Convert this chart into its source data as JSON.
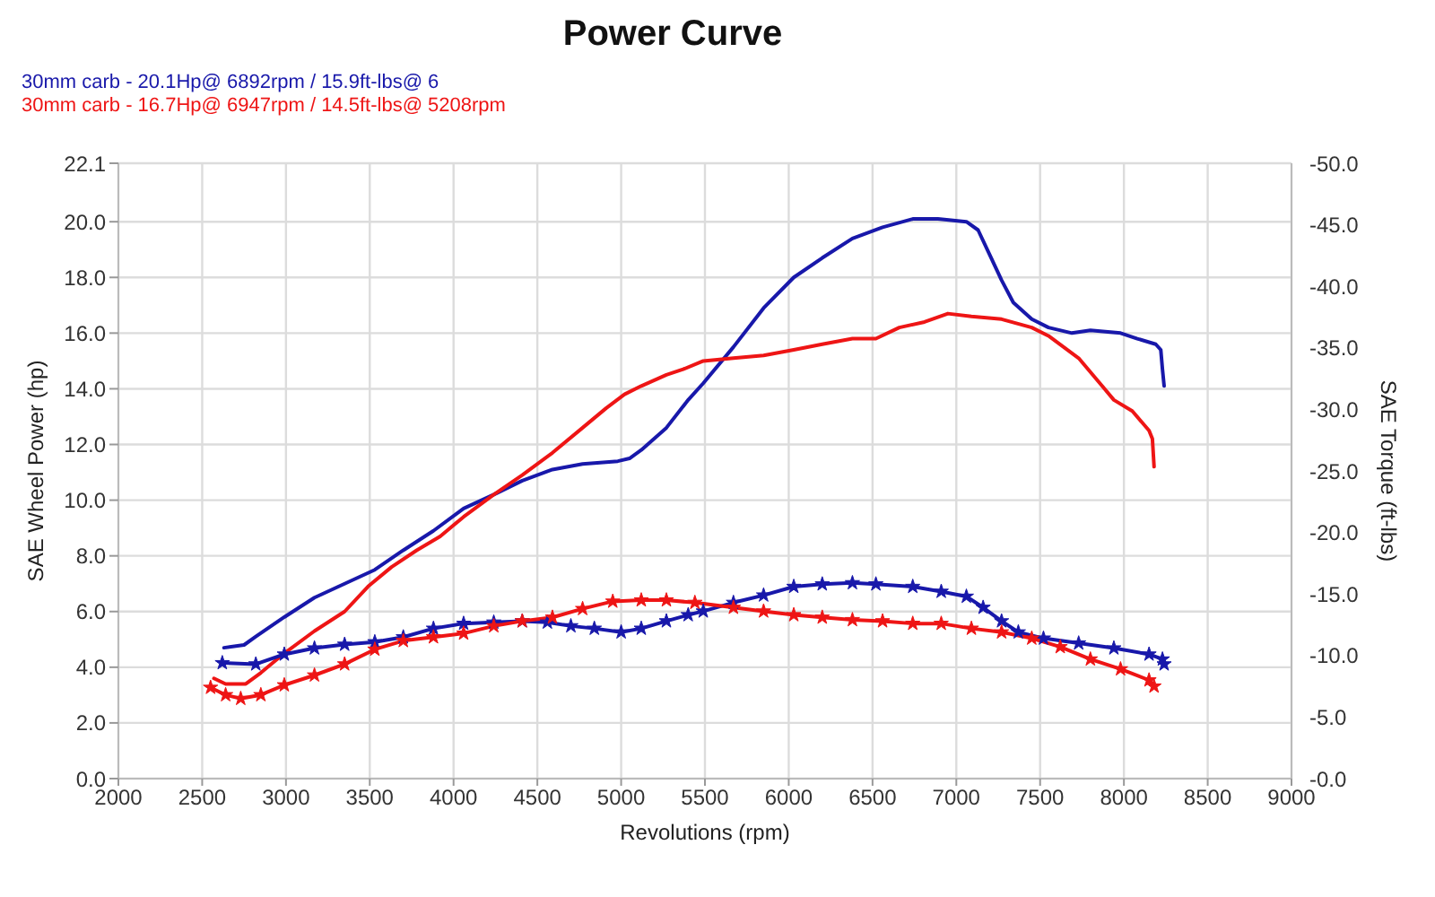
{
  "chart_data": {
    "type": "line",
    "title": "Power Curve",
    "xlabel": "Revolutions (rpm)",
    "ylabel": "SAE Wheel Power (hp)",
    "y2label": "SAE Torque (ft-lbs)",
    "xlim": [
      2000,
      9000
    ],
    "xticks": [
      2000,
      2500,
      3000,
      3500,
      4000,
      4500,
      5000,
      5500,
      6000,
      6500,
      7000,
      7500,
      8000,
      8500,
      9000
    ],
    "ylim": [
      0,
      22.1
    ],
    "yticks": [
      {
        "value": 0,
        "label": "0.0"
      },
      {
        "value": 2,
        "label": "2.0"
      },
      {
        "value": 4,
        "label": "4.0"
      },
      {
        "value": 6,
        "label": "6.0"
      },
      {
        "value": 8,
        "label": "8.0"
      },
      {
        "value": 10,
        "label": "10.0"
      },
      {
        "value": 12,
        "label": "12.0"
      },
      {
        "value": 14,
        "label": "14.0"
      },
      {
        "value": 16,
        "label": "16.0"
      },
      {
        "value": 18,
        "label": "18.0"
      },
      {
        "value": 20,
        "label": "20.0"
      },
      22.1
    ],
    "y2lim": [
      0,
      -50
    ],
    "y2ticks": [
      {
        "value": 0,
        "label": "-0.0"
      },
      {
        "value": -5,
        "label": "-5.0"
      },
      {
        "value": -10,
        "label": "-10.0"
      },
      {
        "value": -15,
        "label": "-15.0"
      },
      {
        "value": -20,
        "label": "-20.0"
      },
      {
        "value": -25,
        "label": "-25.0"
      },
      {
        "value": -30,
        "label": "-30.0"
      },
      {
        "value": -35,
        "label": "-35.0"
      },
      {
        "value": -40,
        "label": "-40.0"
      },
      {
        "value": -45,
        "label": "-45.0"
      },
      {
        "value": -50,
        "label": "-50.0"
      }
    ],
    "grid": true,
    "legend": "top left",
    "series": [
      {
        "name": "30mm carb - 20.1Hp@ 6892rpm / 15.9ft-lbs@ 6",
        "color": "#1818aa",
        "marker": "none",
        "x": [
          2630,
          2750,
          2820,
          2990,
          3170,
          3350,
          3530,
          3700,
          3880,
          4060,
          4240,
          4410,
          4590,
          4770,
          4980,
          5050,
          5120,
          5270,
          5400,
          5490,
          5670,
          5850,
          6030,
          6200,
          6380,
          6560,
          6740,
          6890,
          7060,
          7130,
          7200,
          7270,
          7340,
          7450,
          7550,
          7690,
          7800,
          7980,
          8080,
          8190,
          8220,
          8230,
          8240
        ],
        "values": [
          4.7,
          4.8,
          5.1,
          5.8,
          6.5,
          7.0,
          7.5,
          8.2,
          8.9,
          9.7,
          10.2,
          10.7,
          11.1,
          11.3,
          11.4,
          11.5,
          11.8,
          12.6,
          13.6,
          14.2,
          15.5,
          16.9,
          18.0,
          18.7,
          19.4,
          19.8,
          20.1,
          20.1,
          20.0,
          19.7,
          18.8,
          17.9,
          17.1,
          16.5,
          16.2,
          16.0,
          16.1,
          16.0,
          15.8,
          15.6,
          15.4,
          14.7,
          14.1
        ]
      },
      {
        "name": "30mm carb - 16.7Hp@ 6947rpm / 14.5ft-lbs@ 5208rpm",
        "color": "#ee1515",
        "marker": "none",
        "x": [
          2570,
          2640,
          2760,
          2850,
          2990,
          3170,
          3350,
          3490,
          3630,
          3780,
          3920,
          4060,
          4240,
          4410,
          4590,
          4770,
          4910,
          5020,
          5120,
          5270,
          5370,
          5490,
          5670,
          5850,
          6030,
          6200,
          6380,
          6520,
          6660,
          6810,
          6950,
          7090,
          7270,
          7450,
          7550,
          7730,
          7870,
          7940,
          8050,
          8150,
          8170,
          8180
        ],
        "values": [
          3.6,
          3.4,
          3.4,
          3.8,
          4.5,
          5.3,
          6.0,
          6.9,
          7.6,
          8.2,
          8.7,
          9.4,
          10.2,
          10.9,
          11.7,
          12.6,
          13.3,
          13.8,
          14.1,
          14.5,
          14.7,
          15.0,
          15.1,
          15.2,
          15.4,
          15.6,
          15.8,
          15.8,
          16.2,
          16.4,
          16.7,
          16.6,
          16.5,
          16.2,
          15.9,
          15.1,
          14.1,
          13.6,
          13.2,
          12.5,
          12.2,
          11.2
        ]
      },
      {
        "color": "#1818aa",
        "axis": "y2",
        "marker": "star",
        "x": [
          2620,
          2820,
          2990,
          3170,
          3350,
          3530,
          3700,
          3880,
          4060,
          4240,
          4410,
          4560,
          4700,
          4840,
          5000,
          5120,
          5270,
          5400,
          5490,
          5670,
          5850,
          6030,
          6200,
          6380,
          6520,
          6740,
          6910,
          7060,
          7160,
          7270,
          7370,
          7520,
          7730,
          7940,
          8150,
          8230,
          8240
        ],
        "values": [
          -9.4,
          -9.3,
          -10.1,
          -10.6,
          -10.9,
          -11.1,
          -11.5,
          -12.2,
          -12.6,
          -12.7,
          -12.8,
          -12.7,
          -12.4,
          -12.2,
          -11.9,
          -12.2,
          -12.8,
          -13.3,
          -13.6,
          -14.3,
          -14.9,
          -15.6,
          -15.8,
          -15.9,
          -15.8,
          -15.6,
          -15.2,
          -14.8,
          -13.9,
          -12.8,
          -11.9,
          -11.4,
          -11.0,
          -10.6,
          -10.1,
          -9.7,
          -9.3
        ]
      },
      {
        "color": "#ee1515",
        "axis": "y2",
        "marker": "star",
        "x": [
          2550,
          2640,
          2730,
          2850,
          2990,
          3170,
          3350,
          3530,
          3700,
          3880,
          4060,
          4240,
          4410,
          4590,
          4770,
          4950,
          5120,
          5270,
          5440,
          5670,
          5850,
          6030,
          6200,
          6380,
          6560,
          6740,
          6910,
          7090,
          7270,
          7450,
          7620,
          7800,
          7980,
          8150,
          8180
        ],
        "values": [
          -7.4,
          -6.8,
          -6.5,
          -6.8,
          -7.6,
          -8.4,
          -9.3,
          -10.5,
          -11.2,
          -11.5,
          -11.8,
          -12.4,
          -12.8,
          -13.1,
          -13.8,
          -14.4,
          -14.5,
          -14.5,
          -14.3,
          -13.9,
          -13.6,
          -13.3,
          -13.1,
          -12.9,
          -12.8,
          -12.6,
          -12.6,
          -12.2,
          -11.9,
          -11.4,
          -10.7,
          -9.7,
          -8.9,
          -8.0,
          -7.5
        ]
      }
    ]
  }
}
